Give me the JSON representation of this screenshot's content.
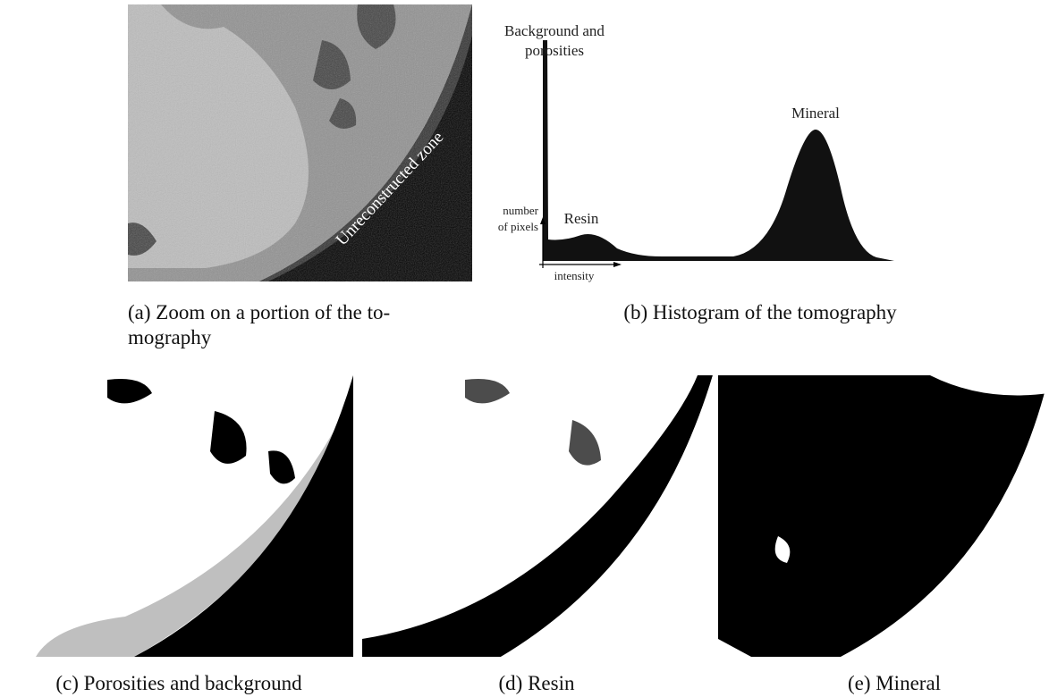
{
  "panel_a": {
    "annotation": "Unreconstructed zone",
    "caption": [
      "(a) Zoom on a portion of the to-",
      "mography"
    ]
  },
  "panel_b": {
    "labels": {
      "background": [
        "Background and",
        "porosities"
      ],
      "mineral": "Mineral",
      "resin": "Resin",
      "y_axis": [
        "number",
        "of pixels"
      ],
      "x_axis": "intensity"
    },
    "caption": "(b) Histogram of the tomography"
  },
  "panel_c": {
    "caption": "(c) Porosities and background"
  },
  "panel_d": {
    "caption": "(d) Resin"
  },
  "panel_e": {
    "caption": "(e) Mineral"
  }
}
